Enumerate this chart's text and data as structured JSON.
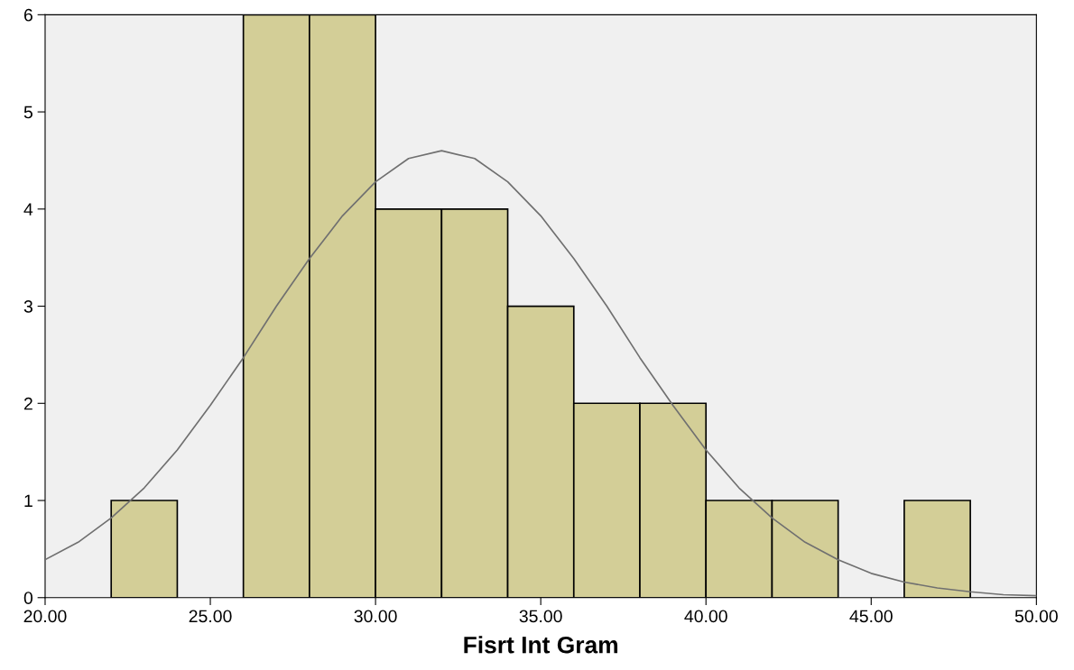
{
  "chart_data": {
    "type": "histogram",
    "xlabel": "Fisrt Int Gram",
    "bins": [
      22,
      24,
      26,
      28,
      30,
      32,
      34,
      36,
      38,
      40,
      42,
      44,
      46,
      48
    ],
    "values": [
      1,
      0,
      6,
      6,
      4,
      4,
      3,
      2,
      2,
      1,
      1,
      0,
      1
    ],
    "color": "#d3ce97",
    "series": [
      {
        "type": "line",
        "color": "#707070",
        "x": [
          20,
          21,
          22,
          23,
          24,
          25,
          26,
          27,
          28,
          29,
          30,
          31,
          32,
          33,
          34,
          35,
          36,
          37,
          38,
          39,
          40,
          41,
          42,
          43,
          44,
          45,
          46,
          47,
          48,
          49,
          50
        ],
        "values": [
          0.39,
          0.57,
          0.82,
          1.13,
          1.52,
          1.98,
          2.47,
          3.0,
          3.49,
          3.93,
          4.28,
          4.52,
          4.6,
          4.52,
          4.28,
          3.93,
          3.49,
          3.0,
          2.47,
          1.98,
          1.52,
          1.13,
          0.82,
          0.57,
          0.39,
          0.25,
          0.16,
          0.1,
          0.06,
          0.03,
          0.02
        ]
      }
    ],
    "xlim": [
      20,
      50
    ],
    "ylim": [
      0,
      6
    ],
    "xticks": [
      {
        "value": 20,
        "label": "20.00"
      },
      {
        "value": 25,
        "label": "25.00"
      },
      {
        "value": 30,
        "label": "30.00"
      },
      {
        "value": 35,
        "label": "35.00"
      },
      {
        "value": 40,
        "label": "40.00"
      },
      {
        "value": 45,
        "label": "45.00"
      },
      {
        "value": 50,
        "label": "50.00"
      }
    ],
    "yticks": [
      0,
      1,
      2,
      3,
      4,
      5,
      6
    ],
    "grid": false
  }
}
